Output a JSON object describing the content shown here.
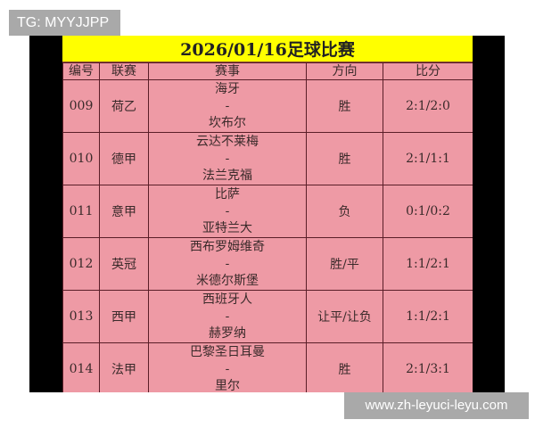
{
  "watermark_top": "TG: MYYJJPP",
  "watermark_bottom": "www.zh-leyuci-leyu.com",
  "title": "2026/01/16足球比赛",
  "headers": [
    "编号",
    "联赛",
    "赛事",
    "方向",
    "比分"
  ],
  "rows": [
    {
      "id": "009",
      "league": "荷乙",
      "home": "海牙",
      "sep": "-",
      "away": "坎布尔",
      "pick": "胜",
      "score": "2:1/2:0"
    },
    {
      "id": "010",
      "league": "德甲",
      "home": "云达不莱梅",
      "sep": "-",
      "away": "法兰克福",
      "pick": "胜",
      "score": "2:1/1:1"
    },
    {
      "id": "011",
      "league": "意甲",
      "home": "比萨",
      "sep": "-",
      "away": "亚特兰大",
      "pick": "负",
      "score": "0:1/0:2"
    },
    {
      "id": "012",
      "league": "英冠",
      "home": "西布罗姆维奇",
      "sep": "-",
      "away": "米德尔斯堡",
      "pick": "胜/平",
      "score": "1:1/2:1"
    },
    {
      "id": "013",
      "league": "西甲",
      "home": "西班牙人",
      "sep": "-",
      "away": "赫罗纳",
      "pick": "让平/让负",
      "score": "1:1/2:1"
    },
    {
      "id": "014",
      "league": "法甲",
      "home": "巴黎圣日耳曼",
      "sep": "-",
      "away": "里尔",
      "pick": "胜",
      "score": "2:1/3:1"
    }
  ]
}
